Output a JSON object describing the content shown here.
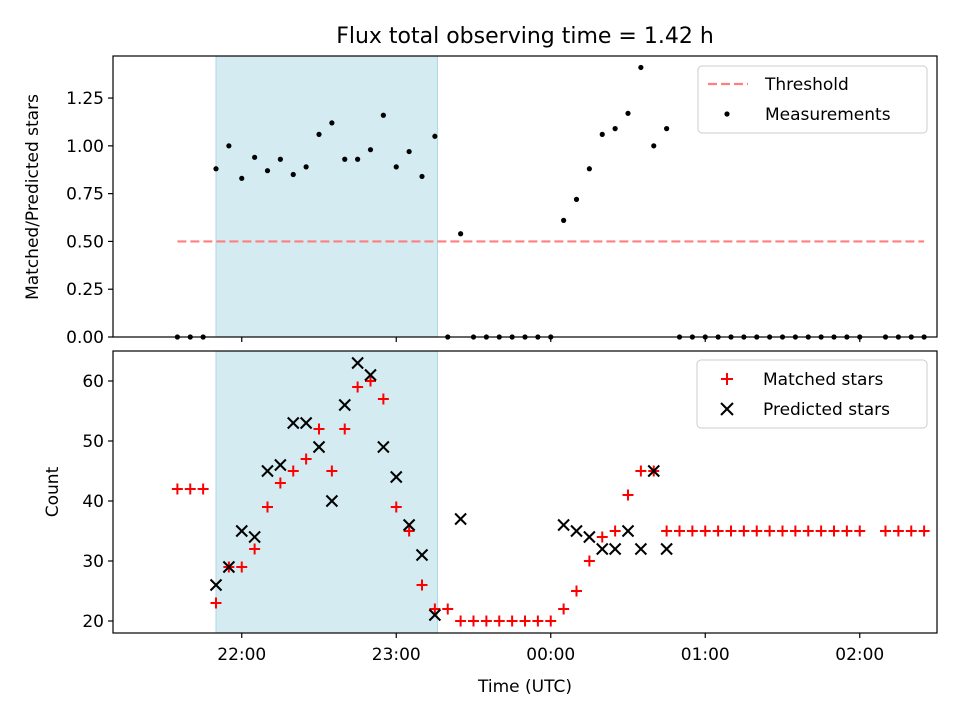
{
  "chart_data": [
    {
      "type": "scatter",
      "title": "Flux total observing time = 1.42 h",
      "ylabel": "Matched/Predicted stars",
      "xlabel": "",
      "ylim": [
        0,
        1.47
      ],
      "yticks": [
        0.0,
        0.25,
        0.5,
        0.75,
        1.0,
        1.25
      ],
      "yticklabels": [
        "0.00",
        "0.25",
        "0.50",
        "0.75",
        "1.00",
        "1.25"
      ],
      "grid": false,
      "legend_position": "upper right",
      "shaded_interval": {
        "start": "21:50",
        "end": "23:16",
        "color": "#d3ebf1"
      },
      "threshold": {
        "name": "Threshold",
        "value": 0.5,
        "from": "21:35",
        "to": "02:25",
        "color": "#ff7f7f",
        "style": "dashed"
      },
      "series": [
        {
          "name": "Measurements",
          "color": "#000000",
          "marker": "dot",
          "points": [
            [
              "21:35",
              0.0
            ],
            [
              "21:40",
              0.0
            ],
            [
              "21:45",
              0.0
            ],
            [
              "21:50",
              0.88
            ],
            [
              "21:55",
              1.0
            ],
            [
              "22:00",
              0.83
            ],
            [
              "22:05",
              0.94
            ],
            [
              "22:10",
              0.87
            ],
            [
              "22:15",
              0.93
            ],
            [
              "22:20",
              0.85
            ],
            [
              "22:25",
              0.89
            ],
            [
              "22:30",
              1.06
            ],
            [
              "22:35",
              1.12
            ],
            [
              "22:40",
              0.93
            ],
            [
              "22:45",
              0.93
            ],
            [
              "22:50",
              0.98
            ],
            [
              "22:55",
              1.16
            ],
            [
              "23:00",
              0.89
            ],
            [
              "23:05",
              0.97
            ],
            [
              "23:10",
              0.84
            ],
            [
              "23:15",
              1.05
            ],
            [
              "23:20",
              0.0
            ],
            [
              "23:25",
              0.54
            ],
            [
              "23:30",
              0.0
            ],
            [
              "23:35",
              0.0
            ],
            [
              "23:40",
              0.0
            ],
            [
              "23:45",
              0.0
            ],
            [
              "23:50",
              0.0
            ],
            [
              "23:55",
              0.0
            ],
            [
              "00:00",
              0.0
            ],
            [
              "00:05",
              0.61
            ],
            [
              "00:10",
              0.72
            ],
            [
              "00:15",
              0.88
            ],
            [
              "00:20",
              1.06
            ],
            [
              "00:25",
              1.09
            ],
            [
              "00:30",
              1.17
            ],
            [
              "00:35",
              1.41
            ],
            [
              "00:40",
              1.0
            ],
            [
              "00:45",
              1.09
            ],
            [
              "00:50",
              0.0
            ],
            [
              "00:55",
              0.0
            ],
            [
              "01:00",
              0.0
            ],
            [
              "01:05",
              0.0
            ],
            [
              "01:10",
              0.0
            ],
            [
              "01:15",
              0.0
            ],
            [
              "01:20",
              0.0
            ],
            [
              "01:25",
              0.0
            ],
            [
              "01:30",
              0.0
            ],
            [
              "01:35",
              0.0
            ],
            [
              "01:40",
              0.0
            ],
            [
              "01:45",
              0.0
            ],
            [
              "01:50",
              0.0
            ],
            [
              "01:55",
              0.0
            ],
            [
              "02:00",
              0.0
            ],
            [
              "02:10",
              0.0
            ],
            [
              "02:15",
              0.0
            ],
            [
              "02:20",
              0.0
            ],
            [
              "02:25",
              0.0
            ]
          ]
        }
      ]
    },
    {
      "type": "scatter",
      "title": "",
      "ylabel": "Count",
      "xlabel": "Time (UTC)",
      "xlim": [
        "21:10",
        "02:30"
      ],
      "xticks": [
        "22:00",
        "23:00",
        "00:00",
        "01:00",
        "02:00"
      ],
      "ylim": [
        18,
        65
      ],
      "yticks": [
        20,
        30,
        40,
        50,
        60
      ],
      "grid": false,
      "legend_position": "upper right",
      "shaded_interval": {
        "start": "21:50",
        "end": "23:16",
        "color": "#d3ebf1"
      },
      "series": [
        {
          "name": "Matched stars",
          "color": "#ff0000",
          "marker": "plus",
          "points": [
            [
              "21:35",
              42
            ],
            [
              "21:40",
              42
            ],
            [
              "21:45",
              42
            ],
            [
              "21:50",
              23
            ],
            [
              "21:55",
              29
            ],
            [
              "22:00",
              29
            ],
            [
              "22:05",
              32
            ],
            [
              "22:10",
              39
            ],
            [
              "22:15",
              43
            ],
            [
              "22:20",
              45
            ],
            [
              "22:25",
              47
            ],
            [
              "22:30",
              52
            ],
            [
              "22:35",
              45
            ],
            [
              "22:40",
              52
            ],
            [
              "22:45",
              59
            ],
            [
              "22:50",
              60
            ],
            [
              "22:55",
              57
            ],
            [
              "23:00",
              39
            ],
            [
              "23:05",
              35
            ],
            [
              "23:10",
              26
            ],
            [
              "23:15",
              22
            ],
            [
              "23:20",
              22
            ],
            [
              "23:25",
              20
            ],
            [
              "23:30",
              20
            ],
            [
              "23:35",
              20
            ],
            [
              "23:40",
              20
            ],
            [
              "23:45",
              20
            ],
            [
              "23:50",
              20
            ],
            [
              "23:55",
              20
            ],
            [
              "00:00",
              20
            ],
            [
              "00:05",
              22
            ],
            [
              "00:10",
              25
            ],
            [
              "00:15",
              30
            ],
            [
              "00:20",
              34
            ],
            [
              "00:25",
              35
            ],
            [
              "00:30",
              41
            ],
            [
              "00:35",
              45
            ],
            [
              "00:40",
              45
            ],
            [
              "00:45",
              35
            ],
            [
              "00:50",
              35
            ],
            [
              "00:55",
              35
            ],
            [
              "01:00",
              35
            ],
            [
              "01:05",
              35
            ],
            [
              "01:10",
              35
            ],
            [
              "01:15",
              35
            ],
            [
              "01:20",
              35
            ],
            [
              "01:25",
              35
            ],
            [
              "01:30",
              35
            ],
            [
              "01:35",
              35
            ],
            [
              "01:40",
              35
            ],
            [
              "01:45",
              35
            ],
            [
              "01:50",
              35
            ],
            [
              "01:55",
              35
            ],
            [
              "02:00",
              35
            ],
            [
              "02:10",
              35
            ],
            [
              "02:15",
              35
            ],
            [
              "02:20",
              35
            ],
            [
              "02:25",
              35
            ]
          ]
        },
        {
          "name": "Predicted stars",
          "color": "#000000",
          "marker": "x",
          "points": [
            [
              "21:50",
              26
            ],
            [
              "21:55",
              29
            ],
            [
              "22:00",
              35
            ],
            [
              "22:05",
              34
            ],
            [
              "22:10",
              45
            ],
            [
              "22:15",
              46
            ],
            [
              "22:20",
              53
            ],
            [
              "22:25",
              53
            ],
            [
              "22:30",
              49
            ],
            [
              "22:35",
              40
            ],
            [
              "22:40",
              56
            ],
            [
              "22:45",
              63
            ],
            [
              "22:50",
              61
            ],
            [
              "22:55",
              49
            ],
            [
              "23:00",
              44
            ],
            [
              "23:05",
              36
            ],
            [
              "23:10",
              31
            ],
            [
              "23:15",
              21
            ],
            [
              "23:25",
              37
            ],
            [
              "00:05",
              36
            ],
            [
              "00:10",
              35
            ],
            [
              "00:15",
              34
            ],
            [
              "00:20",
              32
            ],
            [
              "00:25",
              32
            ],
            [
              "00:30",
              35
            ],
            [
              "00:35",
              32
            ],
            [
              "00:40",
              45
            ],
            [
              "00:45",
              32
            ]
          ]
        }
      ]
    }
  ]
}
